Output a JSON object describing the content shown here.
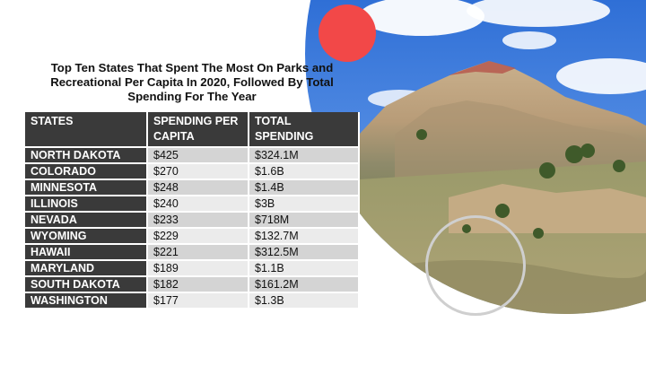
{
  "title": "Top Ten States That Spent The Most On Parks and Recreational Per Capita In 2020, Followed By Total Spending For The Year",
  "table": {
    "headers": {
      "state": "STATES",
      "per_capita": "SPENDING PER CAPITA",
      "total": "TOTAL SPENDING"
    },
    "rows": [
      {
        "state": "NORTH DAKOTA",
        "per_capita": "$425",
        "total": "$324.1M"
      },
      {
        "state": "COLORADO",
        "per_capita": "$270",
        "total": "$1.6B"
      },
      {
        "state": "MINNESOTA",
        "per_capita": "$248",
        "total": "$1.4B"
      },
      {
        "state": "ILLINOIS",
        "per_capita": "$240",
        "total": "$3B"
      },
      {
        "state": "NEVADA",
        "per_capita": "$233",
        "total": "$718M"
      },
      {
        "state": "WYOMING",
        "per_capita": "$229",
        "total": "$132.7M"
      },
      {
        "state": "HAWAII",
        "per_capita": "$221",
        "total": "$312.5M"
      },
      {
        "state": "MARYLAND",
        "per_capita": "$189",
        "total": "$1.1B"
      },
      {
        "state": "SOUTH DAKOTA",
        "per_capita": "$182",
        "total": "$161.2M"
      },
      {
        "state": "WASHINGTON",
        "per_capita": "$177",
        "total": "$1.3B"
      }
    ]
  },
  "colors": {
    "accent_red": "#f24848",
    "header_dark": "#3a3a3a",
    "row_light": "#ebebeb",
    "row_mid": "#d4d4d4"
  }
}
